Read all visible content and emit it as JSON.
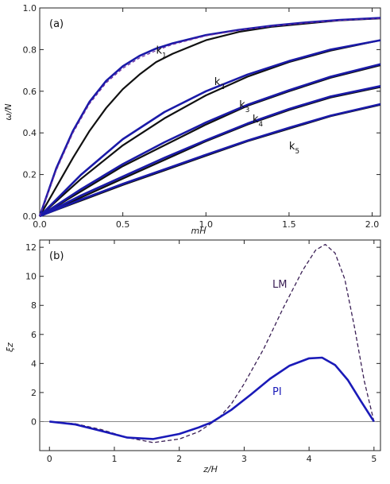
{
  "colors": {
    "black": "#111111",
    "blue": "#1a1aa8",
    "blue_dash": "#6a2aa0",
    "lm": "#3a1f55",
    "pi": "#1a1ab8",
    "zero": "#777777"
  },
  "chart_data": [
    {
      "type": "line",
      "panel_label": "(a)",
      "xlabel": "mH",
      "ylabel": "ω/N",
      "xlim": [
        0,
        2.05
      ],
      "ylim": [
        0,
        1.0
      ],
      "x_ticks": [
        0.0,
        0.5,
        1.0,
        1.5,
        2.0
      ],
      "x_tick_labels": [
        "0.0",
        "0.5",
        "1.0",
        "1.5",
        "2.0"
      ],
      "y_ticks": [
        0.0,
        0.2,
        0.4,
        0.6,
        0.8,
        1.0
      ],
      "y_tick_labels": [
        "0.0",
        "0.2",
        "0.4",
        "0.6",
        "0.8",
        "1.0"
      ],
      "mode_labels": [
        {
          "base": "k",
          "sub": "1"
        },
        {
          "base": "k",
          "sub": "2"
        },
        {
          "base": "k",
          "sub": "3"
        },
        {
          "base": "k",
          "sub": "4"
        },
        {
          "base": "k",
          "sub": "5"
        }
      ],
      "series": [
        {
          "mode": 1,
          "style": "black",
          "x": [
            0,
            0.1,
            0.2,
            0.3,
            0.4,
            0.5,
            0.6,
            0.7,
            0.8,
            1.0,
            1.2,
            1.4,
            1.6,
            1.8,
            2.05
          ],
          "y": [
            0,
            0.14,
            0.28,
            0.41,
            0.52,
            0.61,
            0.68,
            0.74,
            0.78,
            0.845,
            0.885,
            0.91,
            0.925,
            0.94,
            0.95
          ]
        },
        {
          "mode": 1,
          "style": "blue",
          "x": [
            0,
            0.1,
            0.2,
            0.3,
            0.4,
            0.5,
            0.6,
            0.7,
            0.8,
            1.0,
            1.2,
            1.4,
            1.6,
            1.8,
            2.05
          ],
          "y": [
            0,
            0.23,
            0.41,
            0.55,
            0.65,
            0.72,
            0.77,
            0.805,
            0.83,
            0.87,
            0.895,
            0.915,
            0.93,
            0.942,
            0.952
          ]
        },
        {
          "mode": 1,
          "style": "blue_dash",
          "x": [
            0,
            0.1,
            0.2,
            0.3,
            0.4,
            0.5,
            0.6,
            0.7,
            0.8,
            1.0,
            1.2,
            1.4,
            1.6,
            1.8,
            2.05
          ],
          "y": [
            0,
            0.22,
            0.4,
            0.54,
            0.64,
            0.71,
            0.76,
            0.795,
            0.825,
            0.866,
            0.893,
            0.913,
            0.928,
            0.94,
            0.95
          ]
        },
        {
          "mode": 2,
          "style": "black",
          "x": [
            0,
            0.25,
            0.5,
            0.75,
            1.0,
            1.25,
            1.5,
            1.75,
            2.05
          ],
          "y": [
            0,
            0.18,
            0.34,
            0.47,
            0.58,
            0.67,
            0.74,
            0.795,
            0.845
          ]
        },
        {
          "mode": 2,
          "style": "blue",
          "x": [
            0,
            0.25,
            0.5,
            0.75,
            1.0,
            1.25,
            1.5,
            1.75,
            2.05
          ],
          "y": [
            0,
            0.2,
            0.37,
            0.5,
            0.6,
            0.68,
            0.745,
            0.8,
            0.845
          ]
        },
        {
          "mode": 3,
          "style": "black",
          "x": [
            0,
            0.25,
            0.5,
            0.75,
            1.0,
            1.25,
            1.5,
            1.75,
            2.05
          ],
          "y": [
            0,
            0.12,
            0.24,
            0.34,
            0.44,
            0.53,
            0.6,
            0.665,
            0.725
          ]
        },
        {
          "mode": 3,
          "style": "blue",
          "x": [
            0,
            0.25,
            0.5,
            0.75,
            1.0,
            1.25,
            1.5,
            1.75,
            2.05
          ],
          "y": [
            0,
            0.13,
            0.25,
            0.355,
            0.45,
            0.535,
            0.605,
            0.67,
            0.73
          ]
        },
        {
          "mode": 4,
          "style": "black",
          "x": [
            0,
            0.25,
            0.5,
            0.75,
            1.0,
            1.25,
            1.5,
            1.75,
            2.05
          ],
          "y": [
            0,
            0.09,
            0.18,
            0.27,
            0.36,
            0.44,
            0.51,
            0.57,
            0.62
          ]
        },
        {
          "mode": 4,
          "style": "blue",
          "x": [
            0,
            0.25,
            0.5,
            0.75,
            1.0,
            1.25,
            1.5,
            1.75,
            2.05
          ],
          "y": [
            0,
            0.1,
            0.19,
            0.28,
            0.365,
            0.445,
            0.515,
            0.575,
            0.625
          ]
        },
        {
          "mode": 5,
          "style": "black",
          "x": [
            0,
            0.25,
            0.5,
            0.75,
            1.0,
            1.25,
            1.5,
            1.75,
            2.05
          ],
          "y": [
            0,
            0.075,
            0.15,
            0.22,
            0.29,
            0.36,
            0.42,
            0.48,
            0.535
          ]
        },
        {
          "mode": 5,
          "style": "blue",
          "x": [
            0,
            0.25,
            0.5,
            0.75,
            1.0,
            1.25,
            1.5,
            1.75,
            2.05
          ],
          "y": [
            0,
            0.08,
            0.155,
            0.225,
            0.295,
            0.363,
            0.425,
            0.483,
            0.538
          ]
        }
      ]
    },
    {
      "type": "line",
      "panel_label": "(b)",
      "xlabel": "z/H",
      "ylabel": "ξz",
      "xlim": [
        -0.15,
        5.1
      ],
      "ylim": [
        -2.0,
        12.5
      ],
      "x_ticks": [
        0,
        1,
        2,
        3,
        4,
        5
      ],
      "x_tick_labels": [
        "0",
        "1",
        "2",
        "3",
        "4",
        "5"
      ],
      "y_ticks": [
        0,
        2,
        4,
        6,
        8,
        10,
        12
      ],
      "y_tick_labels": [
        "0",
        "2",
        "4",
        "6",
        "8",
        "10",
        "12"
      ],
      "series": [
        {
          "name": "LM",
          "style": "lm_dash",
          "x": [
            0,
            0.4,
            0.8,
            1.2,
            1.6,
            2.0,
            2.3,
            2.6,
            2.8,
            3.0,
            3.3,
            3.6,
            3.9,
            4.1,
            4.25,
            4.4,
            4.55,
            4.7,
            4.85,
            5.0
          ],
          "y": [
            0,
            -0.15,
            -0.55,
            -1.1,
            -1.45,
            -1.2,
            -0.7,
            0.2,
            1.2,
            2.6,
            5.0,
            7.8,
            10.4,
            11.8,
            12.2,
            11.6,
            9.8,
            6.5,
            2.8,
            0
          ]
        },
        {
          "name": "PI",
          "style": "pi_solid",
          "x": [
            0,
            0.4,
            0.8,
            1.2,
            1.6,
            2.0,
            2.3,
            2.5,
            2.8,
            3.1,
            3.4,
            3.7,
            4.0,
            4.2,
            4.4,
            4.6,
            4.8,
            5.0
          ],
          "y": [
            0,
            -0.2,
            -0.65,
            -1.1,
            -1.2,
            -0.85,
            -0.4,
            -0.05,
            0.8,
            1.85,
            2.95,
            3.85,
            4.35,
            4.4,
            3.9,
            2.85,
            1.4,
            0
          ]
        }
      ],
      "zero_line": true
    }
  ]
}
